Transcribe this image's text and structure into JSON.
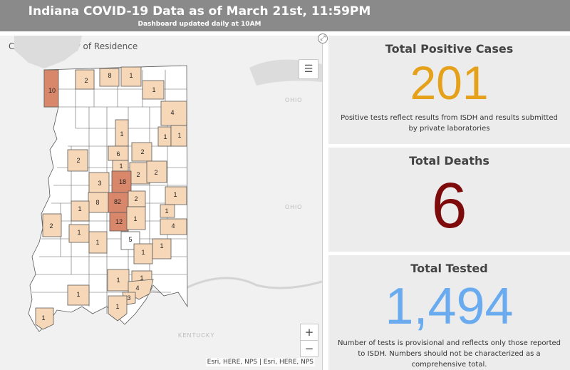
{
  "header": {
    "title": "Indiana COVID-19 Data as of March 21st, 11:59PM",
    "subtitle": "Dashboard updated daily at 10AM"
  },
  "map": {
    "title": "Cases by County of Residence",
    "attribution": "Esri, HERE, NPS | Esri, HERE, NPS",
    "state_labels": [
      "OHIO",
      "OHIO",
      "KENTUCKY"
    ],
    "county_counts": [
      10,
      2,
      8,
      1,
      1,
      4,
      1,
      1,
      1,
      6,
      2,
      2,
      1,
      2,
      2,
      3,
      18,
      1,
      8,
      82,
      2,
      1,
      2,
      1,
      12,
      1,
      4,
      1,
      1,
      5,
      1,
      1,
      1,
      1,
      4,
      3,
      1,
      1
    ],
    "zoom_in": "+",
    "zoom_out": "−",
    "colors": {
      "light": "#f6d7b8",
      "medium": "#e7b08c",
      "dark": "#d9876a",
      "border": "#5a5a5a"
    }
  },
  "cards": {
    "positive": {
      "title": "Total Positive Cases",
      "value": "201",
      "note": "Positive tests reflect results from ISDH and results submitted by private laboratories",
      "color": "#e6a11a"
    },
    "deaths": {
      "title": "Total Deaths",
      "value": "6",
      "color": "#7d0b0b"
    },
    "tested": {
      "title": "Total Tested",
      "value": "1,494",
      "note": "Number of tests is provisional and reflects only those reported to ISDH. Numbers should not be characterized as a comprehensive total.",
      "color": "#6aabf0"
    }
  }
}
